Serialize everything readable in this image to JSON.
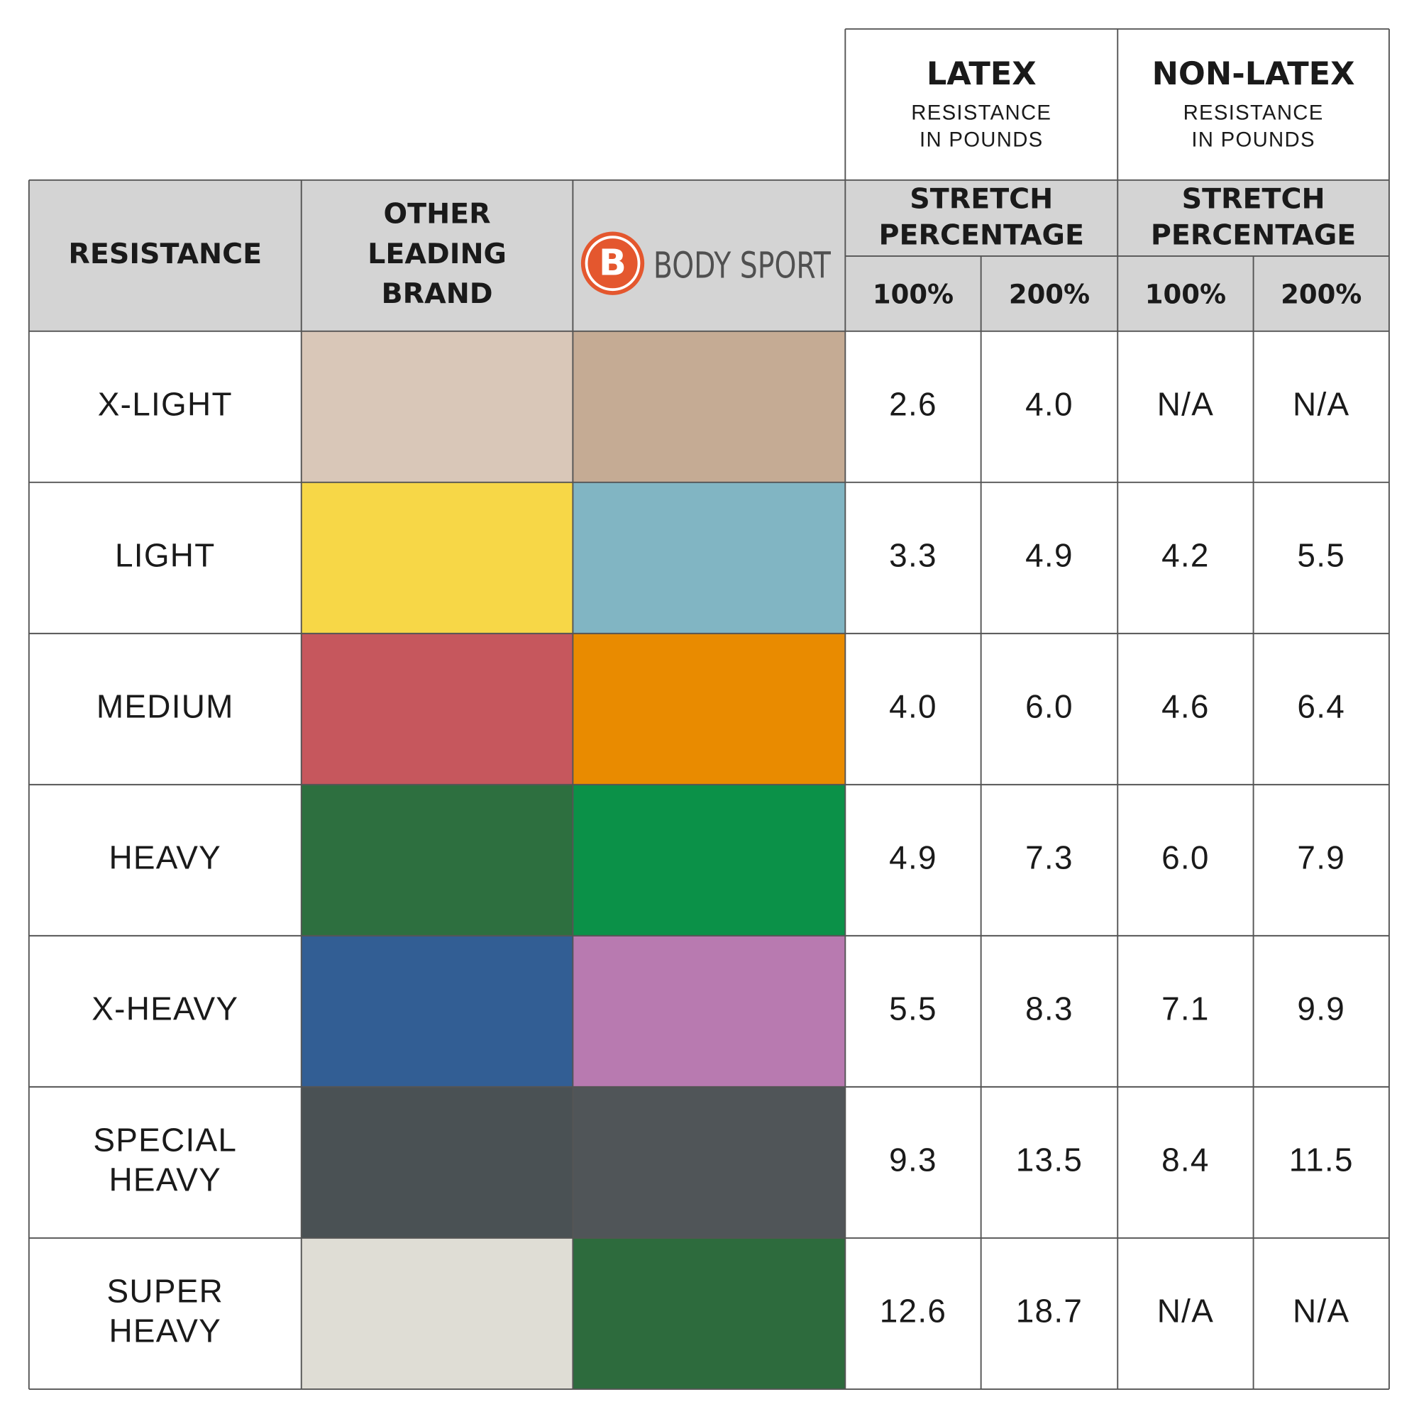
{
  "header": {
    "resistance": "RESISTANCE",
    "other_brand": [
      "OTHER",
      "LEADING",
      "BRAND"
    ],
    "brand": {
      "mark": "B",
      "name": "BODY SPORT"
    },
    "groups": [
      {
        "title": "LATEX",
        "subtitle": [
          "RESISTANCE",
          "IN POUNDS"
        ],
        "stretch": [
          "STRETCH",
          "PERCENTAGE"
        ],
        "columns": [
          "100%",
          "200%"
        ]
      },
      {
        "title": "NON-LATEX",
        "subtitle": [
          "RESISTANCE",
          "IN POUNDS"
        ],
        "stretch": [
          "STRETCH",
          "PERCENTAGE"
        ],
        "columns": [
          "100%",
          "200%"
        ]
      }
    ]
  },
  "rows": [
    {
      "label": [
        "X-LIGHT"
      ],
      "other_color": "#d9c7b8",
      "bodysport_color": "#c5ab94",
      "values": [
        "2.6",
        "4.0",
        "N/A",
        "N/A"
      ]
    },
    {
      "label": [
        "LIGHT"
      ],
      "other_color": "#f7d747",
      "bodysport_color": "#81b5c3",
      "values": [
        "3.3",
        "4.9",
        "4.2",
        "5.5"
      ]
    },
    {
      "label": [
        "MEDIUM"
      ],
      "other_color": "#c6575d",
      "bodysport_color": "#e98b00",
      "values": [
        "4.0",
        "6.0",
        "4.6",
        "6.4"
      ]
    },
    {
      "label": [
        "HEAVY"
      ],
      "other_color": "#2d6f3f",
      "bodysport_color": "#0b9148",
      "values": [
        "4.9",
        "7.3",
        "6.0",
        "7.9"
      ]
    },
    {
      "label": [
        "X-HEAVY"
      ],
      "other_color": "#325e94",
      "bodysport_color": "#b87ab0",
      "values": [
        "5.5",
        "8.3",
        "7.1",
        "9.9"
      ]
    },
    {
      "label": [
        "SPECIAL",
        "HEAVY"
      ],
      "other_color": "#4a5154",
      "bodysport_color": "#505558",
      "values": [
        "9.3",
        "13.5",
        "8.4",
        "11.5"
      ]
    },
    {
      "label": [
        "SUPER",
        "HEAVY"
      ],
      "other_color": "#dfddd5",
      "bodysport_color": "#2d6b3d",
      "values": [
        "12.6",
        "18.7",
        "N/A",
        "N/A"
      ]
    }
  ]
}
